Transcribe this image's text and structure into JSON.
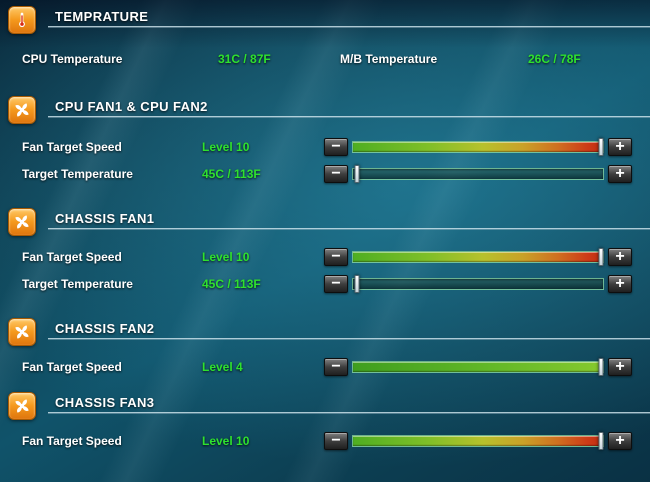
{
  "colors": {
    "value_green": "#2ee12e",
    "label_white": "#ffffff",
    "icon_orange": "#f59a1e",
    "slider_border_green": "#94e8b2"
  },
  "controls": {
    "minus_label": "−",
    "plus_label": "+"
  },
  "sections": {
    "temperature": {
      "title": "TEMPRATURE",
      "icon": "thermometer-icon",
      "cpu_label": "CPU Temperature",
      "cpu_value": "31C / 87F",
      "mb_label": "M/B Temperature",
      "mb_value": "26C / 78F"
    },
    "cpu_fan": {
      "title": "CPU FAN1 & CPU FAN2",
      "icon": "fan-icon",
      "rows": [
        {
          "label": "Fan Target Speed",
          "value": "Level 10"
        },
        {
          "label": "Target Temperature",
          "value": "45C / 113F"
        }
      ]
    },
    "chassis_fan1": {
      "title": "CHASSIS FAN1",
      "icon": "fan-icon",
      "rows": [
        {
          "label": "Fan Target Speed",
          "value": "Level 10"
        },
        {
          "label": "Target Temperature",
          "value": "45C / 113F"
        }
      ]
    },
    "chassis_fan2": {
      "title": "CHASSIS FAN2",
      "icon": "fan-icon",
      "rows": [
        {
          "label": "Fan Target Speed",
          "value": "Level 4"
        }
      ]
    },
    "chassis_fan3": {
      "title": "CHASSIS FAN3",
      "icon": "fan-icon",
      "rows": [
        {
          "label": "Fan Target Speed",
          "value": "Level 10"
        }
      ]
    }
  },
  "sliders": {
    "cpu_fan_speed": {
      "fill_percent": 100,
      "handle_percent": 99,
      "gradient": "linear-gradient(90deg,#4fae22 0%,#7fbf28 30%,#b7c12c 52%,#c9a128 68%,#cf6f20 82%,#cd3a17 94%,#bf2c11 100%)"
    },
    "cpu_target_temp": {
      "fill_percent": 0,
      "handle_percent": 1.5,
      "gradient": ""
    },
    "chassis1_fan_speed": {
      "fill_percent": 100,
      "handle_percent": 99,
      "gradient": "linear-gradient(90deg,#4fae22 0%,#7fbf28 30%,#b7c12c 52%,#c9a128 68%,#cf6f20 82%,#cd3a17 94%,#bf2c11 100%)"
    },
    "chassis1_target_temp": {
      "fill_percent": 0,
      "handle_percent": 1.5,
      "gradient": ""
    },
    "chassis2_fan_speed": {
      "fill_percent": 100,
      "handle_percent": 99,
      "gradient": "linear-gradient(90deg,#3f9e1f 0%,#62b827 55%,#86c92e 100%)"
    },
    "chassis3_fan_speed": {
      "fill_percent": 100,
      "handle_percent": 99,
      "gradient": "linear-gradient(90deg,#4fae22 0%,#7fbf28 30%,#b7c12c 52%,#c9a128 68%,#cf6f20 82%,#cd3a17 94%,#bf2c11 100%)"
    }
  }
}
